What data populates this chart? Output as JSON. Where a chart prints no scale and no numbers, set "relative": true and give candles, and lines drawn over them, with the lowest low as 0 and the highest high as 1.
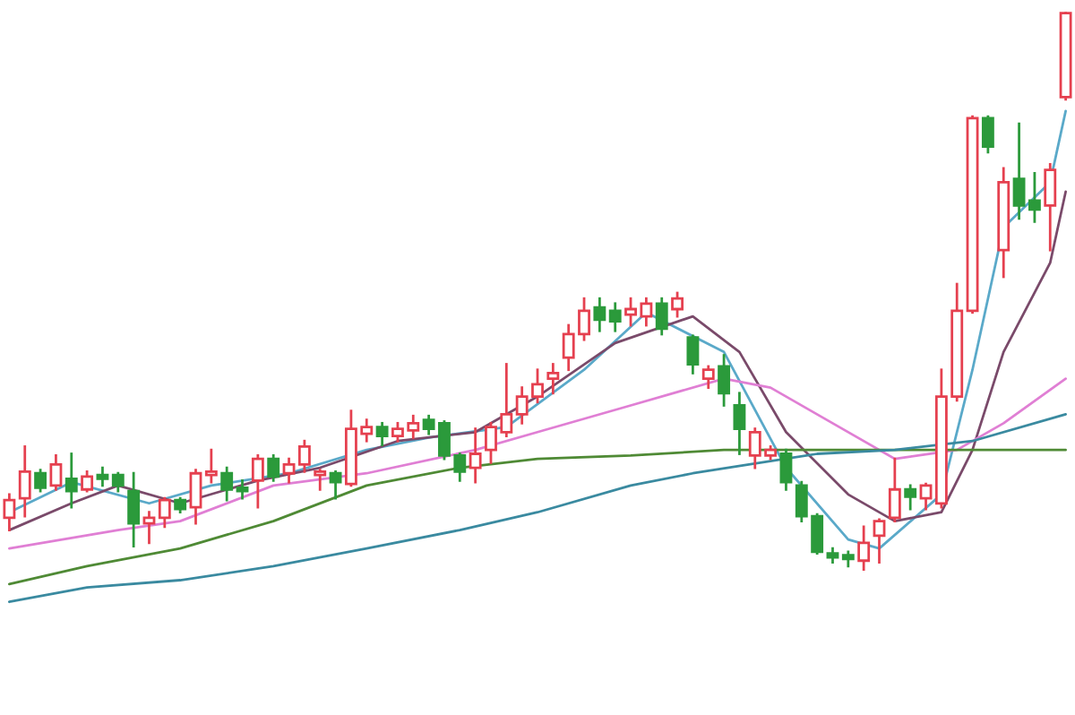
{
  "chart_data": {
    "type": "candlestick",
    "relative": true,
    "categories": [
      null,
      null,
      null,
      null,
      null,
      null,
      null,
      null,
      null,
      null,
      null,
      null,
      null,
      null,
      null,
      null,
      null,
      null,
      null,
      null,
      null,
      null,
      null,
      null,
      null,
      null,
      null,
      null,
      null,
      null,
      null,
      null,
      null,
      null,
      null,
      null,
      null,
      null,
      null,
      null,
      null,
      null,
      null,
      null,
      null,
      null,
      null,
      null,
      null,
      null,
      null,
      null,
      null,
      null,
      null,
      null,
      null,
      null,
      null,
      null,
      null,
      null,
      null,
      null,
      null,
      null,
      null,
      null,
      null
    ],
    "ohlc": [
      [
        0.093,
        0.135,
        0.071,
        0.125
      ],
      [
        0.128,
        0.221,
        0.096,
        0.176
      ],
      [
        0.173,
        0.179,
        0.141,
        0.147
      ],
      [
        0.151,
        0.205,
        0.144,
        0.189
      ],
      [
        0.163,
        0.208,
        0.112,
        0.141
      ],
      [
        0.144,
        0.176,
        0.141,
        0.167
      ],
      [
        0.17,
        0.183,
        0.151,
        0.163
      ],
      [
        0.17,
        0.173,
        0.141,
        0.151
      ],
      [
        0.141,
        0.173,
        0.042,
        0.083
      ],
      [
        0.083,
        0.103,
        0.048,
        0.093
      ],
      [
        0.093,
        0.128,
        0.077,
        0.125
      ],
      [
        0.125,
        0.128,
        0.103,
        0.109
      ],
      [
        0.112,
        0.179,
        0.083,
        0.173
      ],
      [
        0.17,
        0.215,
        0.157,
        0.176
      ],
      [
        0.173,
        0.183,
        0.125,
        0.144
      ],
      [
        0.147,
        0.16,
        0.128,
        0.141
      ],
      [
        0.16,
        0.205,
        0.112,
        0.199
      ],
      [
        0.199,
        0.205,
        0.16,
        0.167
      ],
      [
        0.173,
        0.199,
        0.157,
        0.189
      ],
      [
        0.189,
        0.231,
        0.176,
        0.221
      ],
      [
        0.17,
        0.179,
        0.144,
        0.176
      ],
      [
        0.173,
        0.176,
        0.128,
        0.157
      ],
      [
        0.154,
        0.285,
        0.151,
        0.253
      ],
      [
        0.244,
        0.269,
        0.231,
        0.256
      ],
      [
        0.256,
        0.263,
        0.224,
        0.24
      ],
      [
        0.24,
        0.263,
        0.231,
        0.253
      ],
      [
        0.25,
        0.276,
        0.237,
        0.263
      ],
      [
        0.269,
        0.276,
        0.244,
        0.253
      ],
      [
        0.263,
        0.266,
        0.199,
        0.205
      ],
      [
        0.205,
        0.208,
        0.16,
        0.176
      ],
      [
        0.183,
        0.253,
        0.157,
        0.208
      ],
      [
        0.215,
        0.263,
        0.192,
        0.256
      ],
      [
        0.247,
        0.369,
        0.24,
        0.279
      ],
      [
        0.279,
        0.327,
        0.263,
        0.311
      ],
      [
        0.311,
        0.359,
        0.301,
        0.333
      ],
      [
        0.343,
        0.369,
        0.317,
        0.353
      ],
      [
        0.381,
        0.439,
        0.359,
        0.423
      ],
      [
        0.423,
        0.487,
        0.413,
        0.465
      ],
      [
        0.471,
        0.487,
        0.429,
        0.449
      ],
      [
        0.465,
        0.478,
        0.429,
        0.446
      ],
      [
        0.458,
        0.487,
        0.439,
        0.468
      ],
      [
        0.455,
        0.487,
        0.439,
        0.478
      ],
      [
        0.478,
        0.487,
        0.423,
        0.433
      ],
      [
        0.468,
        0.497,
        0.455,
        0.487
      ],
      [
        0.417,
        0.42,
        0.353,
        0.369
      ],
      [
        0.343,
        0.365,
        0.327,
        0.359
      ],
      [
        0.365,
        0.385,
        0.295,
        0.317
      ],
      [
        0.295,
        0.317,
        0.208,
        0.253
      ],
      [
        0.205,
        0.253,
        0.183,
        0.247
      ],
      [
        0.205,
        0.221,
        0.199,
        0.215
      ],
      [
        0.208,
        0.215,
        0.144,
        0.157
      ],
      [
        0.151,
        0.157,
        0.087,
        0.096
      ],
      [
        0.096,
        0.099,
        0.029,
        0.032
      ],
      [
        0.029,
        0.038,
        0.013,
        0.022
      ],
      [
        0.026,
        0.032,
        0.006,
        0.019
      ],
      [
        0.016,
        0.077,
        0,
        0.048
      ],
      [
        0.061,
        0.09,
        0.013,
        0.087
      ],
      [
        0.093,
        0.199,
        0.087,
        0.144
      ],
      [
        0.144,
        0.151,
        0.109,
        0.131
      ],
      [
        0.128,
        0.154,
        0.109,
        0.151
      ],
      [
        0.119,
        0.359,
        0.112,
        0.311
      ],
      [
        0.311,
        0.513,
        0.304,
        0.465
      ],
      [
        0.465,
        0.814,
        0.462,
        0.811
      ],
      [
        0.811,
        0.814,
        0.75,
        0.76
      ],
      [
        0.574,
        0.721,
        0.526,
        0.696
      ],
      [
        0.702,
        0.801,
        0.631,
        0.654
      ],
      [
        0.663,
        0.712,
        0.625,
        0.647
      ],
      [
        0.654,
        0.728,
        0.574,
        0.718
      ],
      [
        0.849,
        1,
        0.845,
        1
      ]
    ],
    "colors": [
      "#e5404f",
      "#e5404f",
      "#2b9a3b",
      "#e5404f",
      "#2b9a3b",
      "#e5404f",
      "#2b9a3b",
      "#2b9a3b",
      "#2b9a3b",
      "#e5404f",
      "#e5404f",
      "#2b9a3b",
      "#e5404f",
      "#e5404f",
      "#2b9a3b",
      "#2b9a3b",
      "#e5404f",
      "#2b9a3b",
      "#e5404f",
      "#e5404f",
      "#e5404f",
      "#2b9a3b",
      "#e5404f",
      "#e5404f",
      "#2b9a3b",
      "#e5404f",
      "#e5404f",
      "#2b9a3b",
      "#2b9a3b",
      "#2b9a3b",
      "#e5404f",
      "#e5404f",
      "#e5404f",
      "#e5404f",
      "#e5404f",
      "#e5404f",
      "#e5404f",
      "#e5404f",
      "#2b9a3b",
      "#2b9a3b",
      "#e5404f",
      "#e5404f",
      "#2b9a3b",
      "#e5404f",
      "#2b9a3b",
      "#e5404f",
      "#2b9a3b",
      "#2b9a3b",
      "#e5404f",
      "#e5404f",
      "#2b9a3b",
      "#2b9a3b",
      "#2b9a3b",
      "#2b9a3b",
      "#2b9a3b",
      "#e5404f",
      "#e5404f",
      "#e5404f",
      "#2b9a3b",
      "#e5404f",
      "#e5404f",
      "#e5404f",
      "#e5404f",
      "#2b9a3b",
      "#e5404f",
      "#2b9a3b",
      "#2b9a3b",
      "#e5404f",
      "#e5404f"
    ],
    "series": [
      {
        "type": "line",
        "color": "#5aa9c9",
        "values": [
          0.103,
          null,
          null,
          null,
          0.157,
          null,
          null,
          null,
          null,
          0.119,
          null,
          null,
          null,
          0.151,
          null,
          null,
          null,
          null,
          0.173,
          null,
          null,
          null,
          null,
          0.215,
          null,
          null,
          null,
          0.237,
          null,
          null,
          null,
          null,
          0.256,
          null,
          null,
          null,
          null,
          0.359,
          null,
          null,
          null,
          0.462,
          null,
          null,
          null,
          null,
          0.391,
          null,
          null,
          null,
          0.183,
          null,
          null,
          null,
          0.054,
          null,
          0.038,
          null,
          null,
          null,
          0.135,
          null,
          0.359,
          null,
          0.615,
          null,
          null,
          0.696,
          0.824
        ]
      },
      {
        "type": "line",
        "color": "#7a4a6a",
        "values": [
          0.071,
          null,
          null,
          null,
          0.119,
          null,
          null,
          0.151,
          null,
          null,
          null,
          0.119,
          null,
          null,
          null,
          null,
          0.16,
          null,
          null,
          null,
          0.183,
          null,
          null,
          null,
          null,
          0.231,
          null,
          null,
          null,
          null,
          0.247,
          null,
          null,
          null,
          0.311,
          null,
          null,
          null,
          null,
          0.407,
          null,
          null,
          null,
          null,
          0.455,
          null,
          null,
          0.391,
          null,
          null,
          0.247,
          null,
          null,
          null,
          0.135,
          null,
          null,
          0.087,
          null,
          null,
          0.103,
          null,
          0.215,
          null,
          0.391,
          null,
          null,
          0.551,
          0.679
        ]
      },
      {
        "type": "line",
        "color": "#e07fd4",
        "values": [
          0.038,
          null,
          null,
          null,
          null,
          null,
          null,
          0.071,
          null,
          null,
          null,
          0.087,
          null,
          null,
          null,
          null,
          null,
          0.151,
          null,
          null,
          null,
          null,
          null,
          0.173,
          null,
          null,
          null,
          null,
          null,
          null,
          0.215,
          null,
          null,
          null,
          0.247,
          null,
          null,
          null,
          null,
          null,
          0.295,
          null,
          null,
          null,
          null,
          null,
          0.343,
          null,
          null,
          0.327,
          null,
          null,
          null,
          0.263,
          null,
          null,
          null,
          0.199,
          null,
          null,
          null,
          0.215,
          null,
          null,
          0.263,
          null,
          null,
          null,
          0.343
        ]
      },
      {
        "type": "line",
        "color": "#4f8a35",
        "values": [
          -0.026,
          null,
          null,
          null,
          null,
          0.006,
          null,
          null,
          null,
          null,
          null,
          0.038,
          null,
          null,
          null,
          null,
          null,
          0.087,
          null,
          null,
          null,
          null,
          null,
          0.151,
          null,
          null,
          null,
          null,
          null,
          0.183,
          null,
          null,
          null,
          null,
          0.199,
          null,
          null,
          null,
          null,
          null,
          0.205,
          null,
          null,
          null,
          null,
          null,
          0.215,
          null,
          null,
          null,
          null,
          null,
          0.215,
          null,
          null,
          null,
          null,
          0.215,
          null,
          null,
          null,
          null,
          null,
          0.215,
          null,
          null,
          null,
          null,
          0.215
        ]
      },
      {
        "type": "line",
        "color": "#3a8aa0",
        "values": [
          -0.058,
          null,
          null,
          null,
          null,
          -0.032,
          null,
          null,
          null,
          null,
          null,
          -0.019,
          null,
          null,
          null,
          null,
          null,
          0.006,
          null,
          null,
          null,
          null,
          null,
          0.038,
          null,
          null,
          null,
          null,
          null,
          0.071,
          null,
          null,
          null,
          null,
          0.103,
          null,
          null,
          null,
          null,
          null,
          0.151,
          null,
          null,
          null,
          0.173,
          null,
          null,
          null,
          null,
          null,
          null,
          null,
          0.208,
          null,
          null,
          null,
          null,
          0.215,
          null,
          null,
          null,
          null,
          0.231,
          null,
          null,
          null,
          null,
          null,
          0.279
        ]
      }
    ]
  }
}
